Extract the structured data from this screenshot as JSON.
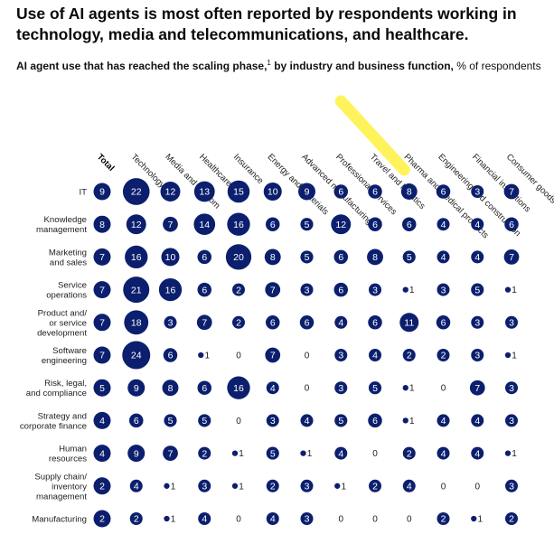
{
  "title": "Use of AI agents is most often reported by respondents working in technology, media and telecommunications, and healthcare.",
  "subtitle": {
    "bold": "AI agent use that has reached the scaling phase,",
    "footnote": "1",
    "bold_tail": " by industry and business function,",
    "unit": " % of respondents"
  },
  "colors": {
    "bubble": "#0b1f6e",
    "highlight": "#fff35c",
    "text": "#222222"
  },
  "chart_data": {
    "type": "bubble-matrix",
    "columns": [
      "Total",
      "Technology",
      "Media and telecom",
      "Healthcare",
      "Insurance",
      "Energy and materials",
      "Advanced manufacturing",
      "Professional services",
      "Travel and logistics",
      "Pharma and medical products",
      "Engineering and construction",
      "Financial institutions",
      "Consumer goods and retail"
    ],
    "highlighted_column": "Professional services",
    "rows": [
      {
        "label": "IT",
        "values": [
          9,
          22,
          12,
          13,
          15,
          10,
          9,
          6,
          6,
          8,
          6,
          3,
          7
        ]
      },
      {
        "label": "Knowledge management",
        "values": [
          8,
          12,
          7,
          14,
          16,
          6,
          5,
          12,
          6,
          6,
          4,
          4,
          6
        ]
      },
      {
        "label": "Marketing and sales",
        "values": [
          7,
          16,
          10,
          6,
          20,
          8,
          5,
          6,
          8,
          5,
          4,
          4,
          7
        ]
      },
      {
        "label": "Service operations",
        "values": [
          7,
          21,
          16,
          6,
          2,
          7,
          3,
          6,
          3,
          1,
          3,
          5,
          1
        ]
      },
      {
        "label": "Product and/ or service development",
        "values": [
          7,
          18,
          3,
          7,
          2,
          6,
          6,
          4,
          6,
          11,
          6,
          3,
          3
        ]
      },
      {
        "label": "Software engineering",
        "values": [
          7,
          24,
          6,
          1,
          0,
          7,
          0,
          3,
          4,
          2,
          2,
          3,
          1
        ]
      },
      {
        "label": "Risk, legal, and compliance",
        "values": [
          5,
          9,
          8,
          6,
          16,
          4,
          0,
          3,
          5,
          1,
          0,
          7,
          3
        ]
      },
      {
        "label": "Strategy and corporate finance",
        "values": [
          4,
          6,
          5,
          5,
          0,
          3,
          4,
          5,
          6,
          1,
          4,
          4,
          3
        ]
      },
      {
        "label": "Human resources",
        "values": [
          4,
          9,
          7,
          2,
          1,
          5,
          1,
          4,
          0,
          2,
          4,
          4,
          1
        ]
      },
      {
        "label": "Supply chain/ inventory management",
        "values": [
          2,
          4,
          1,
          3,
          1,
          2,
          3,
          1,
          2,
          4,
          0,
          0,
          3
        ]
      },
      {
        "label": "Manufacturing",
        "values": [
          2,
          2,
          1,
          4,
          0,
          4,
          3,
          0,
          0,
          0,
          2,
          1,
          2
        ]
      }
    ]
  }
}
